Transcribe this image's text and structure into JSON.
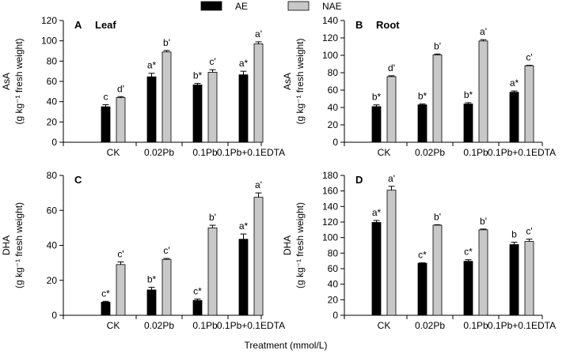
{
  "legend": {
    "ae": "AE",
    "nae": "NAE"
  },
  "colors": {
    "ae": "#000000",
    "nae": "#c8c8c8"
  },
  "x_axis_title": "Treatment (mmol/L)",
  "chart_data": [
    {
      "type": "bar",
      "panel_letter": "A",
      "panel_title": "Leaf",
      "ylabel_top": "AsA",
      "ylabel_bottom": "(g kg⁻¹ fresh weight)",
      "categories": [
        "CK",
        "0.02Pb",
        "0.1Pb",
        "0.1Pb+0.1EDTA"
      ],
      "ylim": [
        0,
        120
      ],
      "yticks": [
        0,
        20,
        40,
        60,
        80,
        100,
        120
      ],
      "series": [
        {
          "name": "AE",
          "values": [
            35,
            64.5,
            56.5,
            66.5
          ],
          "errors": [
            2,
            3.5,
            1.5,
            3.5
          ],
          "labels": [
            "c",
            "a*",
            "b*",
            "a*"
          ]
        },
        {
          "name": "NAE",
          "values": [
            44,
            89,
            69,
            97
          ],
          "errors": [
            1,
            1.5,
            2.5,
            2
          ],
          "labels": [
            "d'",
            "b'",
            "c'",
            "a'"
          ]
        }
      ]
    },
    {
      "type": "bar",
      "panel_letter": "B",
      "panel_title": "Root",
      "ylabel_top": "AsA",
      "ylabel_bottom": "(g kg⁻¹ fresh weight)",
      "categories": [
        "CK",
        "0.02Pb",
        "0.1Pb",
        "0.1Pb+0.1EDTA"
      ],
      "ylim": [
        0,
        140
      ],
      "yticks": [
        0,
        20,
        40,
        60,
        80,
        100,
        120,
        140
      ],
      "series": [
        {
          "name": "AE",
          "values": [
            41,
            43,
            44,
            57.5
          ],
          "errors": [
            2,
            1,
            1.5,
            1.5
          ],
          "labels": [
            "b*",
            "b*",
            "b*",
            "a*"
          ]
        },
        {
          "name": "NAE",
          "values": [
            75.5,
            100.5,
            116.5,
            88
          ],
          "errors": [
            1,
            1,
            1.5,
            0.5
          ],
          "labels": [
            "d'",
            "b'",
            "a'",
            "c'"
          ]
        }
      ]
    },
    {
      "type": "bar",
      "panel_letter": "C",
      "panel_title": "",
      "ylabel_top": "DHA",
      "ylabel_bottom": "(g kg⁻¹ fresh weight)",
      "categories": [
        "CK",
        "0.02Pb",
        "0.1Pb",
        "0.1Pb+0.1EDTA"
      ],
      "ylim": [
        0,
        80
      ],
      "yticks": [
        0,
        20,
        40,
        60,
        80
      ],
      "series": [
        {
          "name": "AE",
          "values": [
            7.5,
            14.5,
            8.5,
            43.5
          ],
          "errors": [
            0.5,
            1.5,
            0.8,
            3
          ],
          "labels": [
            "c*",
            "b*",
            "c*",
            "a*"
          ]
        },
        {
          "name": "NAE",
          "values": [
            29,
            32,
            50,
            67.5
          ],
          "errors": [
            1.5,
            0.5,
            1.5,
            2.5
          ],
          "labels": [
            "c'",
            "c'",
            "b'",
            "a'"
          ]
        }
      ]
    },
    {
      "type": "bar",
      "panel_letter": "D",
      "panel_title": "",
      "ylabel_top": "DHA",
      "ylabel_bottom": "(g kg⁻¹ fresh weight)",
      "categories": [
        "CK",
        "0.02Pb",
        "0.1Pb",
        "0.1Pb+0.1EDTA"
      ],
      "ylim": [
        0,
        180
      ],
      "yticks": [
        0,
        20,
        40,
        60,
        80,
        100,
        120,
        140,
        160,
        180
      ],
      "series": [
        {
          "name": "AE",
          "values": [
            119.5,
            67,
            69.5,
            91
          ],
          "errors": [
            2.5,
            0.5,
            2,
            3
          ],
          "labels": [
            "a*",
            "c*",
            "c*",
            "b"
          ]
        },
        {
          "name": "NAE",
          "values": [
            161,
            116,
            110,
            95
          ],
          "errors": [
            5,
            0.5,
            1,
            3
          ],
          "labels": [
            "a'",
            "b'",
            "b'",
            "c'"
          ]
        }
      ]
    }
  ]
}
